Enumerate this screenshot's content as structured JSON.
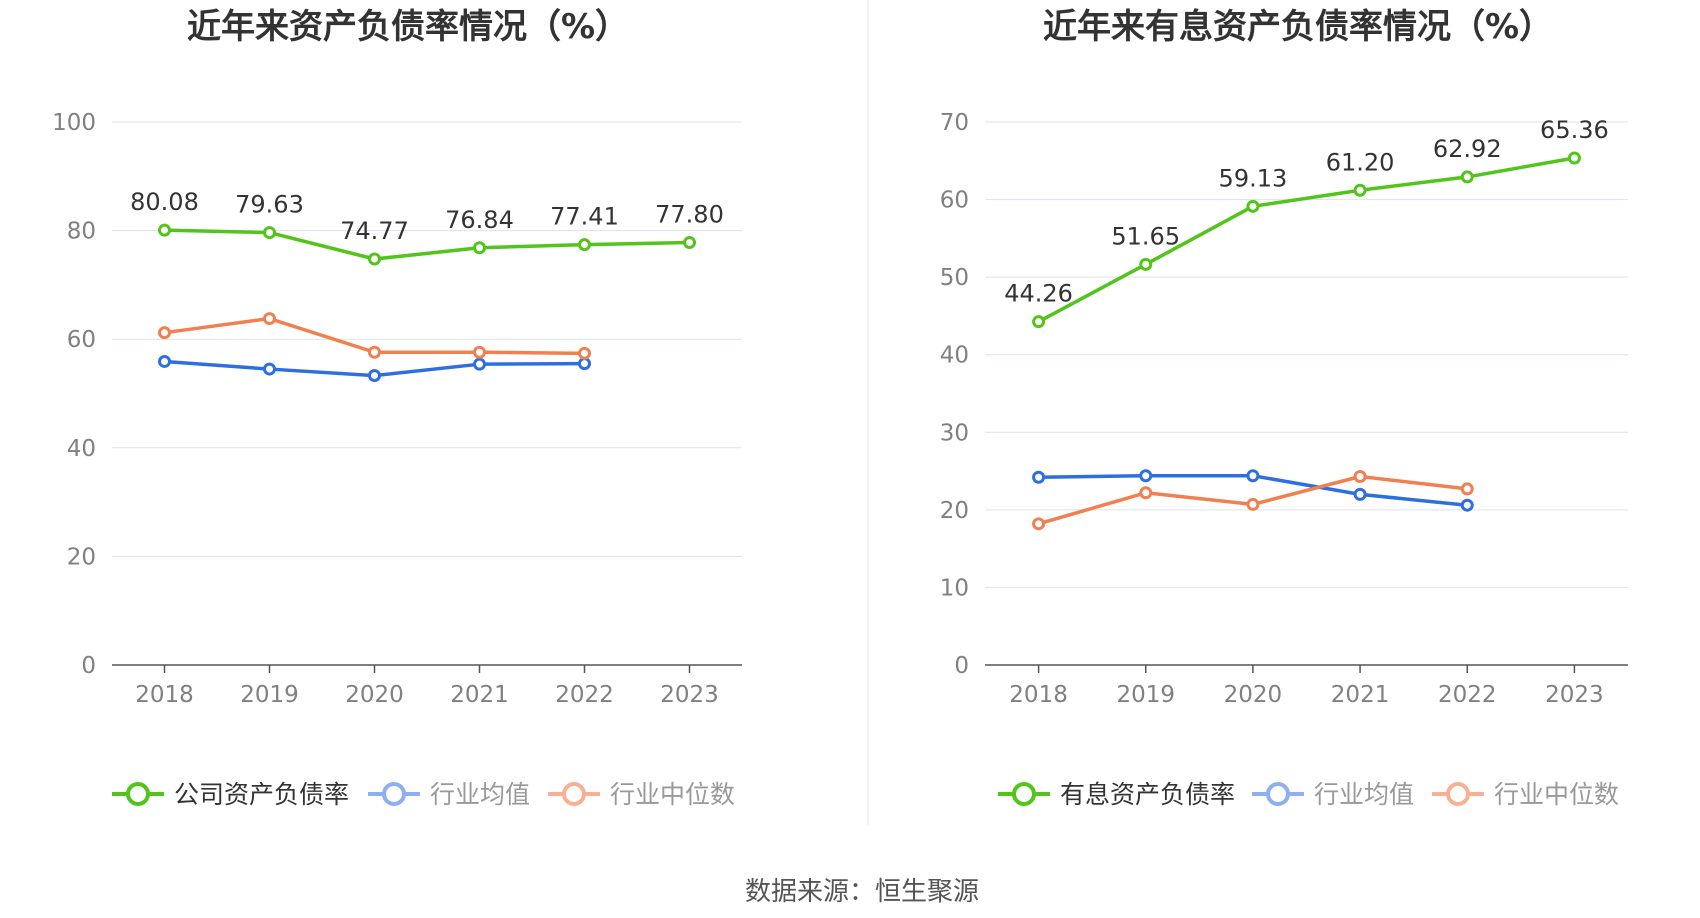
{
  "source": "数据来源：恒生聚源",
  "chart_data": [
    {
      "type": "line",
      "title": "近年来资产负债率情况（%）",
      "categories": [
        "2018",
        "2019",
        "2020",
        "2021",
        "2022",
        "2023"
      ],
      "ylim": [
        0,
        100
      ],
      "yticks": [
        0,
        20,
        40,
        60,
        80,
        100
      ],
      "grid": true,
      "legend_position": "bottom",
      "series": [
        {
          "name": "公司资产负债率",
          "color": "#52c41a",
          "values": [
            80.08,
            79.63,
            74.77,
            76.84,
            77.41,
            77.8
          ],
          "labels": [
            "80.08",
            "79.63",
            "74.77",
            "76.84",
            "77.41",
            "77.80"
          ]
        },
        {
          "name": "行业均值",
          "color": "#2e6fe0",
          "values": [
            55.9,
            54.5,
            53.3,
            55.4,
            55.5,
            null
          ],
          "labels": null
        },
        {
          "name": "行业中位数",
          "color": "#f08050",
          "values": [
            61.2,
            63.8,
            57.6,
            57.6,
            57.4,
            null
          ],
          "labels": null
        }
      ]
    },
    {
      "type": "line",
      "title": "近年来有息资产负债率情况（%）",
      "categories": [
        "2018",
        "2019",
        "2020",
        "2021",
        "2022",
        "2023"
      ],
      "ylim": [
        0,
        70
      ],
      "yticks": [
        0,
        10,
        20,
        30,
        40,
        50,
        60,
        70
      ],
      "grid": true,
      "legend_position": "bottom",
      "series": [
        {
          "name": "有息资产负债率",
          "color": "#52c41a",
          "values": [
            44.26,
            51.65,
            59.13,
            61.2,
            62.92,
            65.36
          ],
          "labels": [
            "44.26",
            "51.65",
            "59.13",
            "61.20",
            "62.92",
            "65.36"
          ]
        },
        {
          "name": "行业均值",
          "color": "#2e6fe0",
          "values": [
            24.2,
            24.4,
            24.4,
            22.0,
            20.6,
            null
          ],
          "labels": null
        },
        {
          "name": "行业中位数",
          "color": "#f08050",
          "values": [
            18.2,
            22.2,
            20.7,
            24.3,
            22.7,
            null
          ],
          "labels": null
        }
      ]
    }
  ]
}
